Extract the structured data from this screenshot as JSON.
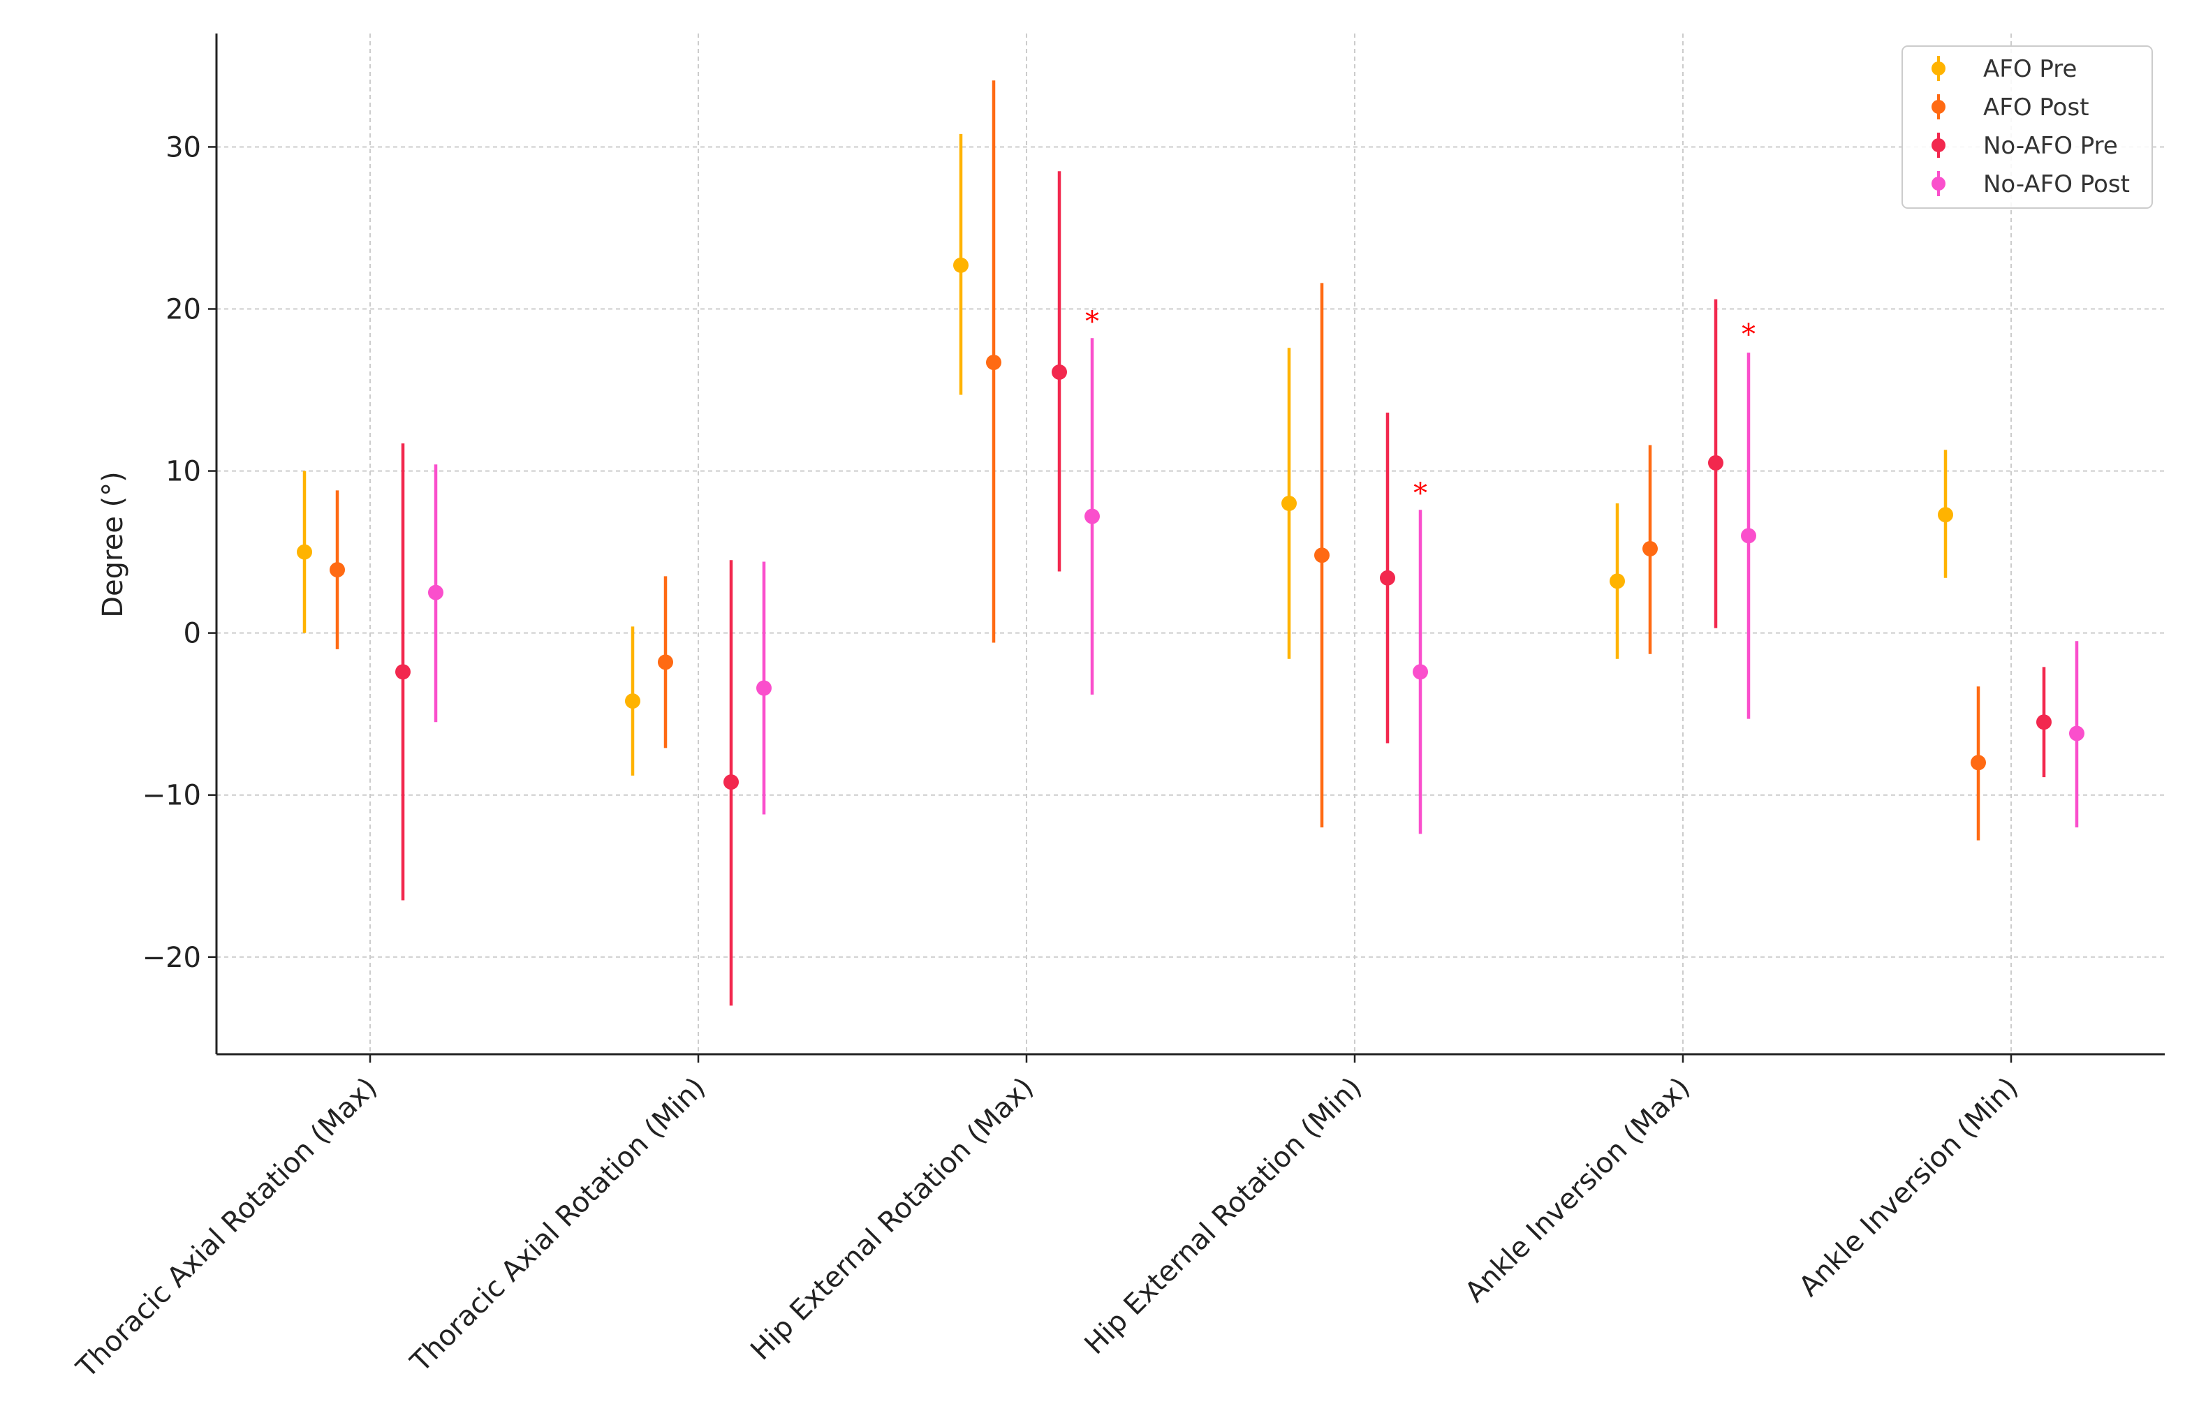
{
  "chart_data": {
    "type": "errorbar",
    "ylabel": "Degree   (°)",
    "ylim": [
      -26,
      37
    ],
    "yticks": [
      -20,
      -10,
      0,
      10,
      20,
      30
    ],
    "ytick_labels": [
      "−20",
      "−10",
      "0",
      "10",
      "20",
      "30"
    ],
    "grid": true,
    "legend_position": "top-right",
    "categories": [
      "Thoracic Axial Rotation (Max)",
      "Thoracic Axial Rotation (Min)",
      "Hip External Rotation (Max)",
      "Hip External Rotation (Min)",
      "Ankle Inversion (Max)",
      "Ankle Inversion (Min)"
    ],
    "series": [
      {
        "name": "AFO Pre",
        "color": "#FFB300",
        "values": [
          5.0,
          -4.2,
          22.7,
          8.0,
          3.2,
          7.3
        ],
        "lower": [
          0.0,
          -8.8,
          14.7,
          -1.6,
          -1.6,
          3.4
        ],
        "upper": [
          10.0,
          0.4,
          30.8,
          17.6,
          8.0,
          11.3
        ]
      },
      {
        "name": "AFO Post",
        "color": "#FF6A13",
        "values": [
          3.9,
          -1.8,
          16.7,
          4.8,
          5.2,
          -8.0
        ],
        "lower": [
          -1.0,
          -7.1,
          -0.6,
          -12.0,
          -1.3,
          -12.8
        ],
        "upper": [
          8.8,
          3.5,
          34.1,
          21.6,
          11.6,
          -3.3
        ]
      },
      {
        "name": "No-AFO Pre",
        "color": "#F2284E",
        "values": [
          -2.4,
          -9.2,
          16.1,
          3.4,
          10.5,
          -5.5
        ],
        "lower": [
          -16.5,
          -23.0,
          3.8,
          -6.8,
          0.3,
          -8.9
        ],
        "upper": [
          11.7,
          4.5,
          28.5,
          13.6,
          20.6,
          -2.1
        ]
      },
      {
        "name": "No-AFO Post",
        "color": "#FA4FCC",
        "values": [
          2.5,
          -3.4,
          7.2,
          -2.4,
          6.0,
          -6.2
        ],
        "lower": [
          -5.5,
          -11.2,
          -3.8,
          -12.4,
          -5.3,
          -12.0
        ],
        "upper": [
          10.4,
          4.4,
          18.2,
          7.6,
          17.3,
          -0.5
        ]
      }
    ],
    "annotations": [
      {
        "text": "*",
        "category": 2,
        "series": 3,
        "y": 19.6
      },
      {
        "text": "*",
        "category": 3,
        "series": 3,
        "y": 9.0
      },
      {
        "text": "*",
        "category": 4,
        "series": 3,
        "y": 18.8
      }
    ]
  }
}
